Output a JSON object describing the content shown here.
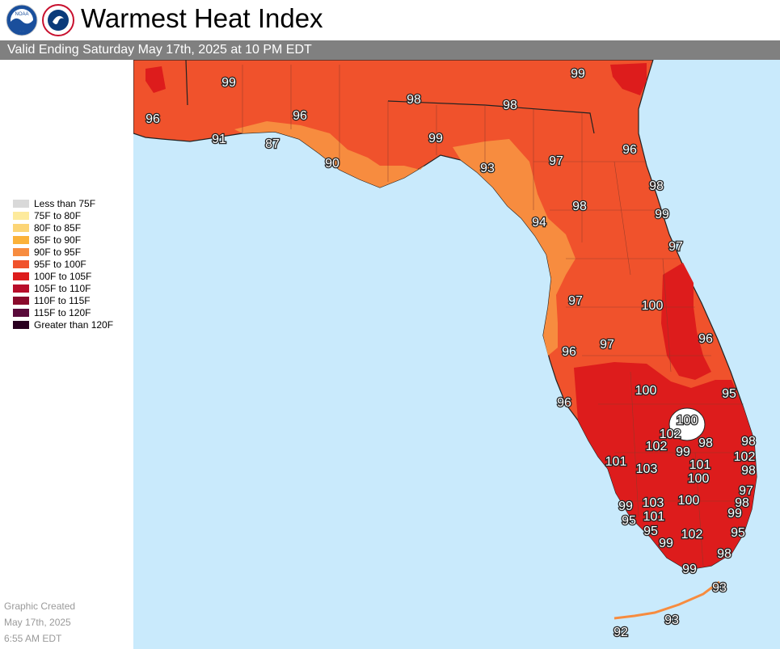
{
  "header": {
    "title": "Warmest Heat Index",
    "subtitle": "Valid Ending Saturday May 17th, 2025 at 10 PM EDT",
    "logos": [
      "noaa-logo",
      "nws-logo"
    ]
  },
  "legend": {
    "items": [
      {
        "label": "Less than 75F",
        "color": "#d9d9d9"
      },
      {
        "label": "75F to 80F",
        "color": "#fdea9c"
      },
      {
        "label": "80F to 85F",
        "color": "#fcd576"
      },
      {
        "label": "85F to 90F",
        "color": "#fbb23a"
      },
      {
        "label": "90F to 95F",
        "color": "#f78c3f"
      },
      {
        "label": "95F to 100F",
        "color": "#f0522c"
      },
      {
        "label": "100F to 105F",
        "color": "#dd1c1c"
      },
      {
        "label": "105F to 110F",
        "color": "#b80d2a"
      },
      {
        "label": "110F to 115F",
        "color": "#8a0a2c"
      },
      {
        "label": "115F to 120F",
        "color": "#5a0a3a"
      },
      {
        "label": "Greater than 120F",
        "color": "#2a0020"
      }
    ]
  },
  "credits": {
    "line1": "Graphic Created",
    "line2": "May 17th, 2025",
    "line3": "6:55 AM EDT"
  },
  "map": {
    "water_color": "#c9eafc",
    "labels": [
      "99",
      "99",
      "98",
      "98",
      "96",
      "96",
      "91",
      "87",
      "99",
      "90",
      "93",
      "97",
      "96",
      "98",
      "99",
      "94",
      "98",
      "97",
      "97",
      "100",
      "96",
      "97",
      "96",
      "100",
      "95",
      "96",
      "100",
      "102",
      "102",
      "99",
      "98",
      "98",
      "101",
      "102",
      "103",
      "101",
      "100",
      "98",
      "97",
      "103",
      "100",
      "99",
      "98",
      "99",
      "95",
      "101",
      "95",
      "102",
      "95",
      "99",
      "98",
      "99",
      "93",
      "92",
      "93"
    ]
  }
}
